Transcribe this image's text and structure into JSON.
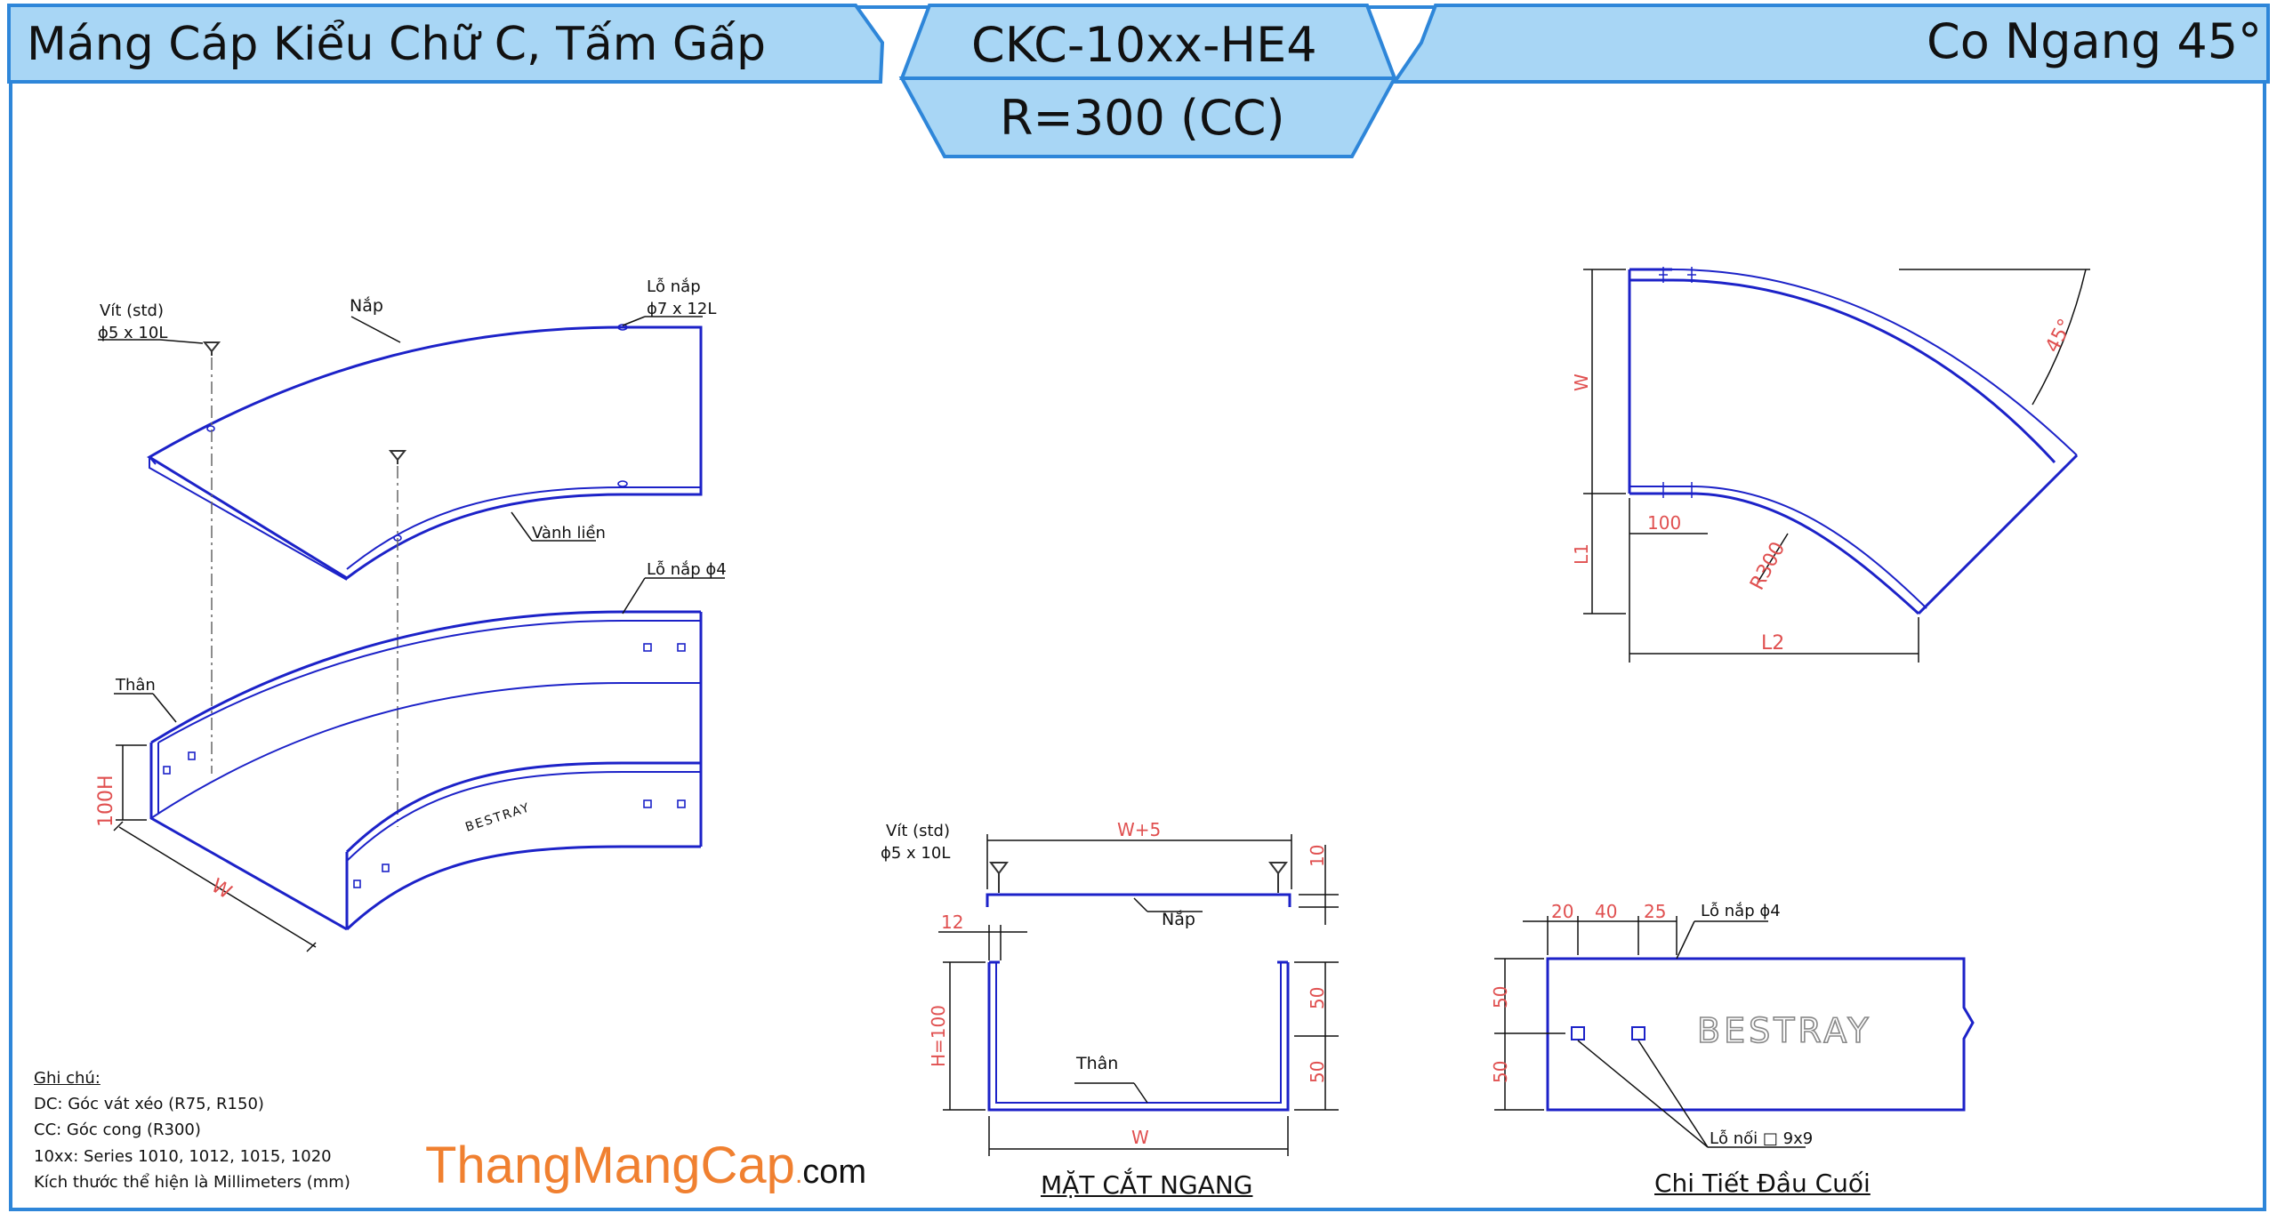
{
  "header": {
    "title_left": "Máng Cáp Kiểu Chữ C, Tấm Gấp",
    "code": "CKC-10xx-HE4",
    "radius": "R=300 (CC)",
    "title_right": "Co Ngang 45°"
  },
  "iso": {
    "screw_label_1": "Vít (std)",
    "screw_label_2": "ϕ5 x 10L",
    "cover_label": "Nắp",
    "cover_hole_label_1": "Lỗ nắp",
    "cover_hole_label_2": "ϕ7 x 12L",
    "rim_label": "Vành liền",
    "cover_hole_small_label": "Lỗ nắp ϕ4",
    "body_label": "Thân",
    "height_label": "100H",
    "width_label": "W",
    "brand_mark": "BESTRAY"
  },
  "plan": {
    "w_label": "W",
    "l1_label": "L1",
    "l2_label": "L2",
    "straight_label": "100",
    "radius_label": "R300",
    "angle_label": "45°"
  },
  "section": {
    "screw_label_1": "Vít (std)",
    "screw_label_2": "ϕ5 x 10L",
    "top_width_label": "W+5",
    "cover_gap_label": "10",
    "lip_label": "12",
    "cover_label": "Nắp",
    "height_label": "H=100",
    "upper_half_label": "50",
    "lower_half_label": "50",
    "body_label": "Thân",
    "bottom_width_label": "W",
    "caption": "MẶT CẮT NGANG"
  },
  "end_detail": {
    "dim_20": "20",
    "dim_40": "40",
    "dim_25": "25",
    "hole_label": "Lỗ nắp ϕ4",
    "dim_50_top": "50",
    "dim_50_bottom": "50",
    "brand_mark": "BESTRAY",
    "slot_label": "Lỗ nối □ 9x9",
    "caption": "Chi Tiết Đầu Cuối"
  },
  "notes": {
    "heading": "Ghi chú:",
    "line1": "DC: Góc vát xéo (R75, R150)",
    "line2": "CC: Góc cong (R300)",
    "line3": "10xx: Series 1010, 1012, 1015, 1020",
    "line4": "Kích thước thể hiện là Millimeters (mm)"
  },
  "brand": {
    "name": "ThangMangCap",
    "dot": ".",
    "tld": "com"
  },
  "colors": {
    "frame": "#2E86D9",
    "header_fill": "#A8D6F5",
    "drawing_line": "#1C22C8",
    "dimension": "#E05050",
    "brand_orange": "#F08030"
  }
}
